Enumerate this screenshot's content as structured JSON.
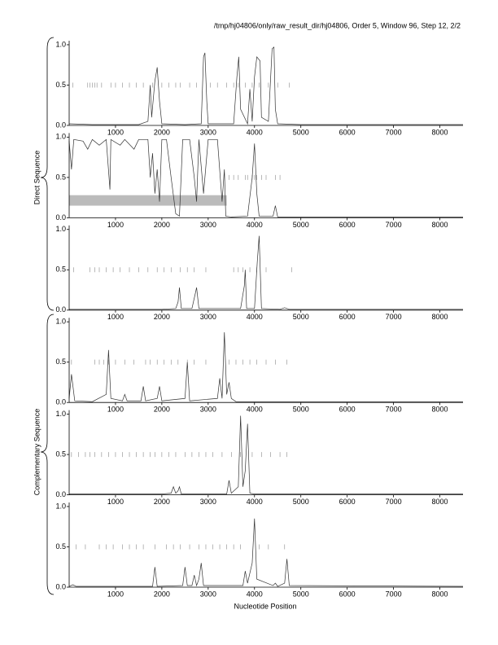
{
  "header": {
    "title": "/tmp/hj04806/only/raw_result_dir/hj04806, Order 5, Window 96, Step 12, 2/2"
  },
  "groups": [
    "Direct Sequence",
    "Complementary Sequence"
  ],
  "x_label": "Nucleotide Position",
  "chart_data": [
    {
      "type": "line",
      "color": "#333333",
      "xlim": [
        0,
        8500
      ],
      "ylim": [
        0,
        1.05
      ],
      "xticks": [
        1000,
        2000,
        3000,
        4000,
        5000,
        6000,
        7000,
        8000
      ],
      "yticks": [
        {
          "value": 0,
          "label": "0.0"
        },
        {
          "value": 0.5,
          "label": "0.5"
        },
        {
          "value": 1,
          "label": "1.0"
        }
      ],
      "x": [
        0,
        500,
        1000,
        1500,
        1700,
        1750,
        1780,
        1850,
        1900,
        1950,
        2000,
        2500,
        2850,
        2900,
        2930,
        2970,
        3000,
        3550,
        3620,
        3660,
        3700,
        3850,
        3900,
        3950,
        4000,
        4050,
        4120,
        4150,
        4300,
        4380,
        4420,
        4450,
        4500,
        5000,
        8500
      ],
      "values": [
        0.02,
        0.01,
        0.01,
        0.01,
        0.05,
        0.5,
        0.1,
        0.55,
        0.72,
        0.3,
        0.02,
        0.01,
        0.02,
        0.85,
        0.9,
        0.3,
        0.02,
        0.02,
        0.6,
        0.85,
        0.2,
        0.02,
        0.45,
        0.05,
        0.6,
        0.85,
        0.8,
        0.1,
        0.05,
        0.95,
        0.97,
        0.2,
        0.02,
        0.01,
        0.01
      ],
      "markers": {
        "y": 0.5,
        "color": "#888888",
        "x": [
          80,
          400,
          450,
          500,
          550,
          600,
          700,
          900,
          1000,
          1150,
          1300,
          1450,
          1600,
          1800,
          2000,
          2150,
          2300,
          2400,
          2600,
          2750,
          3050,
          3200,
          3400,
          3550,
          3650,
          3800,
          3950,
          4100,
          4300,
          4500,
          4750
        ]
      }
    },
    {
      "type": "line",
      "color": "#333333",
      "xlim": [
        0,
        8500
      ],
      "ylim": [
        0,
        1.05
      ],
      "xticks": [
        1000,
        2000,
        3000,
        4000,
        5000,
        6000,
        7000,
        8000
      ],
      "yticks": [
        {
          "value": 0,
          "label": "0.0"
        },
        {
          "value": 0.5,
          "label": "0.5"
        },
        {
          "value": 1,
          "label": "1.0"
        }
      ],
      "x": [
        0,
        50,
        100,
        300,
        400,
        500,
        650,
        800,
        880,
        900,
        1100,
        1200,
        1400,
        1500,
        1700,
        1750,
        1800,
        1850,
        1900,
        1950,
        2000,
        2100,
        2200,
        2300,
        2380,
        2450,
        2500,
        2600,
        2700,
        2750,
        2800,
        2900,
        3000,
        3200,
        3300,
        3350,
        3380,
        3500,
        3850,
        3950,
        4000,
        4050,
        4100,
        4400,
        4450,
        4500,
        8500
      ],
      "values": [
        0.95,
        0.6,
        0.97,
        0.95,
        0.85,
        0.97,
        0.9,
        0.97,
        0.35,
        0.97,
        0.9,
        0.97,
        0.85,
        0.97,
        0.97,
        0.5,
        0.8,
        0.3,
        0.6,
        0.2,
        0.97,
        0.97,
        0.5,
        0.05,
        0.02,
        0.97,
        0.97,
        0.97,
        0.5,
        0.2,
        0.97,
        0.3,
        0.97,
        0.97,
        0.2,
        0.6,
        0.02,
        0.01,
        0.02,
        0.5,
        0.92,
        0.3,
        0.02,
        0.02,
        0.15,
        0.01,
        0.01
      ],
      "markers": {
        "y": 0.5,
        "color": "#888888",
        "x": [
          3450,
          3550,
          3650,
          3800,
          3850,
          3950,
          4000,
          4050,
          4150,
          4250,
          4450,
          4550
        ]
      },
      "region": {
        "color": "#bbbbbb",
        "x": [
          0,
          3400
        ],
        "y": [
          0.15,
          0.28
        ]
      }
    },
    {
      "type": "line",
      "color": "#333333",
      "xlim": [
        0,
        8500
      ],
      "ylim": [
        0,
        1.05
      ],
      "xticks": [
        1000,
        2000,
        3000,
        4000,
        5000,
        6000,
        7000,
        8000
      ],
      "yticks": [
        {
          "value": 0,
          "label": "0.0"
        },
        {
          "value": 0.5,
          "label": "0.5"
        },
        {
          "value": 1,
          "label": "1.0"
        }
      ],
      "x": [
        0,
        1000,
        2000,
        2300,
        2350,
        2380,
        2420,
        2650,
        2720,
        2750,
        2800,
        3700,
        3780,
        3800,
        3830,
        4000,
        4060,
        4100,
        4150,
        4550,
        4650,
        4750,
        8500
      ],
      "values": [
        0.01,
        0.01,
        0.01,
        0.02,
        0.1,
        0.28,
        0.02,
        0.02,
        0.2,
        0.28,
        0.02,
        0.02,
        0.3,
        0.5,
        0.02,
        0.02,
        0.6,
        0.92,
        0.02,
        0.01,
        0.03,
        0.01,
        0.01
      ],
      "markers": {
        "y": 0.5,
        "color": "#888888",
        "x": [
          100,
          450,
          550,
          650,
          800,
          950,
          1100,
          1300,
          1500,
          1700,
          1900,
          2050,
          2200,
          2400,
          2550,
          2700,
          2950,
          3550,
          3650,
          3750,
          3900,
          4050,
          4250,
          4800
        ]
      }
    },
    {
      "type": "line",
      "color": "#333333",
      "xlim": [
        0,
        8500
      ],
      "ylim": [
        0,
        1.05
      ],
      "xticks": [
        1000,
        2000,
        3000,
        4000,
        5000,
        6000,
        7000,
        8000
      ],
      "yticks": [
        {
          "value": 0,
          "label": "0.0"
        },
        {
          "value": 0.5,
          "label": "0.5"
        },
        {
          "value": 1,
          "label": "1.0"
        }
      ],
      "x": [
        0,
        50,
        120,
        500,
        800,
        850,
        900,
        1150,
        1200,
        1250,
        1550,
        1600,
        1650,
        1900,
        1950,
        2000,
        2500,
        2550,
        2600,
        3200,
        3250,
        3300,
        3350,
        3400,
        3450,
        3500,
        3600,
        8500
      ],
      "values": [
        0.05,
        0.35,
        0.02,
        0.01,
        0.1,
        0.65,
        0.05,
        0.02,
        0.1,
        0.02,
        0.02,
        0.2,
        0.02,
        0.05,
        0.2,
        0.02,
        0.05,
        0.5,
        0.02,
        0.05,
        0.3,
        0.05,
        0.87,
        0.1,
        0.25,
        0.05,
        0.01,
        0.01
      ],
      "markers": {
        "y": 0.5,
        "color": "#888888",
        "x": [
          50,
          550,
          650,
          750,
          850,
          1000,
          1200,
          1400,
          1650,
          1750,
          1900,
          2050,
          2200,
          2350,
          2550,
          2700,
          2950,
          3450,
          3600,
          3750,
          3900,
          4050,
          4250,
          4450,
          4700
        ]
      }
    },
    {
      "type": "line",
      "color": "#333333",
      "xlim": [
        0,
        8500
      ],
      "ylim": [
        0,
        1.05
      ],
      "xticks": [
        1000,
        2000,
        3000,
        4000,
        5000,
        6000,
        7000,
        8000
      ],
      "yticks": [
        {
          "value": 0,
          "label": "0.0"
        },
        {
          "value": 0.5,
          "label": "0.5"
        },
        {
          "value": 1,
          "label": "1.0"
        }
      ],
      "x": [
        0,
        2000,
        2200,
        2250,
        2300,
        2350,
        2380,
        2420,
        3400,
        3450,
        3500,
        3650,
        3700,
        3750,
        3800,
        3850,
        3900,
        4000,
        8500
      ],
      "values": [
        0.01,
        0.01,
        0.02,
        0.1,
        0.02,
        0.05,
        0.1,
        0.01,
        0.01,
        0.18,
        0.02,
        0.1,
        0.98,
        0.1,
        0.3,
        0.88,
        0.02,
        0.01,
        0.01
      ],
      "markers": {
        "y": 0.5,
        "color": "#888888",
        "x": [
          50,
          200,
          350,
          450,
          550,
          700,
          850,
          1000,
          1150,
          1300,
          1450,
          1600,
          1750,
          1850,
          2000,
          2150,
          2300,
          2500,
          2650,
          2800,
          2950,
          3100,
          3300,
          3500,
          3700,
          3950,
          4150,
          4350,
          4550,
          4700
        ]
      }
    },
    {
      "type": "line",
      "color": "#333333",
      "xlim": [
        0,
        8500
      ],
      "ylim": [
        0,
        1.05
      ],
      "xticks": [
        1000,
        2000,
        3000,
        4000,
        5000,
        6000,
        7000,
        8000
      ],
      "yticks": [
        {
          "value": 0,
          "label": "0.0"
        },
        {
          "value": 0.5,
          "label": "0.5"
        },
        {
          "value": 1,
          "label": "1.0"
        }
      ],
      "x": [
        0,
        80,
        150,
        1800,
        1850,
        1900,
        2450,
        2500,
        2550,
        2650,
        2700,
        2750,
        2800,
        2850,
        2900,
        3750,
        3800,
        3850,
        3950,
        4000,
        4050,
        4400,
        4450,
        4500,
        4650,
        4700,
        4750,
        8500
      ],
      "values": [
        0.01,
        0.03,
        0.01,
        0.01,
        0.25,
        0.01,
        0.02,
        0.25,
        0.02,
        0.02,
        0.15,
        0.02,
        0.1,
        0.3,
        0.02,
        0.02,
        0.2,
        0.05,
        0.3,
        0.85,
        0.1,
        0.02,
        0.05,
        0.01,
        0.05,
        0.35,
        0.02,
        0.01
      ],
      "markers": {
        "y": 0.5,
        "color": "#888888",
        "x": [
          150,
          350,
          650,
          800,
          950,
          1150,
          1300,
          1450,
          1600,
          1850,
          2100,
          2250,
          2400,
          2600,
          2800,
          2950,
          3100,
          3250,
          3400,
          3550,
          3700,
          4100,
          4300,
          4650
        ]
      }
    }
  ]
}
